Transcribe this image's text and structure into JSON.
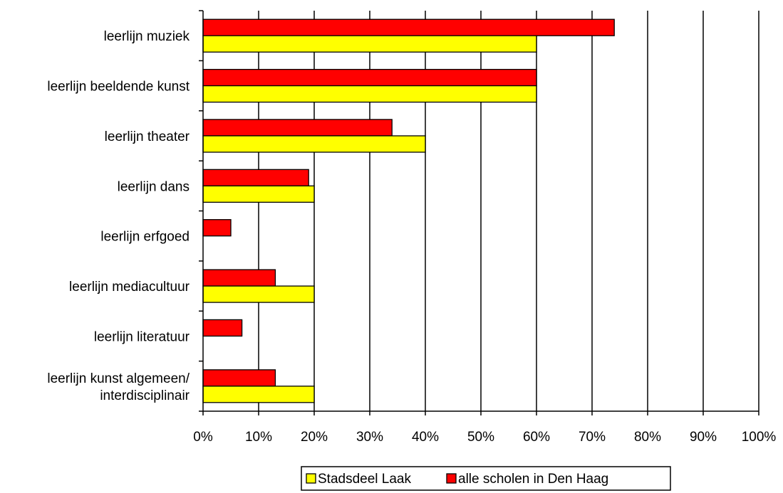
{
  "chart_data": {
    "type": "bar",
    "orientation": "horizontal",
    "categories": [
      [
        "leerlijn muziek"
      ],
      [
        "leerlijn beeldende kunst"
      ],
      [
        "leerlijn theater"
      ],
      [
        "leerlijn dans"
      ],
      [
        "leerlijn erfgoed"
      ],
      [
        "leerlijn mediacultuur"
      ],
      [
        "leerlijn literatuur"
      ],
      [
        "leerlijn kunst algemeen/",
        "interdisciplinair"
      ]
    ],
    "series": [
      {
        "name": "alle scholen in Den Haag",
        "color": "#ff0000",
        "values": [
          74,
          60,
          34,
          19,
          5,
          13,
          7,
          13
        ]
      },
      {
        "name": "Stadsdeel Laak",
        "color": "#ffff00",
        "values": [
          60,
          60,
          40,
          20,
          0,
          20,
          0,
          20
        ]
      }
    ],
    "x_ticks": [
      "0%",
      "10%",
      "20%",
      "30%",
      "40%",
      "50%",
      "60%",
      "70%",
      "80%",
      "90%",
      "100%"
    ],
    "xlim": [
      0,
      100
    ],
    "grid": true,
    "legend_position": "bottom",
    "legend_order": [
      "Stadsdeel Laak",
      "alle scholen in Den Haag"
    ],
    "title": "",
    "xlabel": "",
    "ylabel": ""
  }
}
